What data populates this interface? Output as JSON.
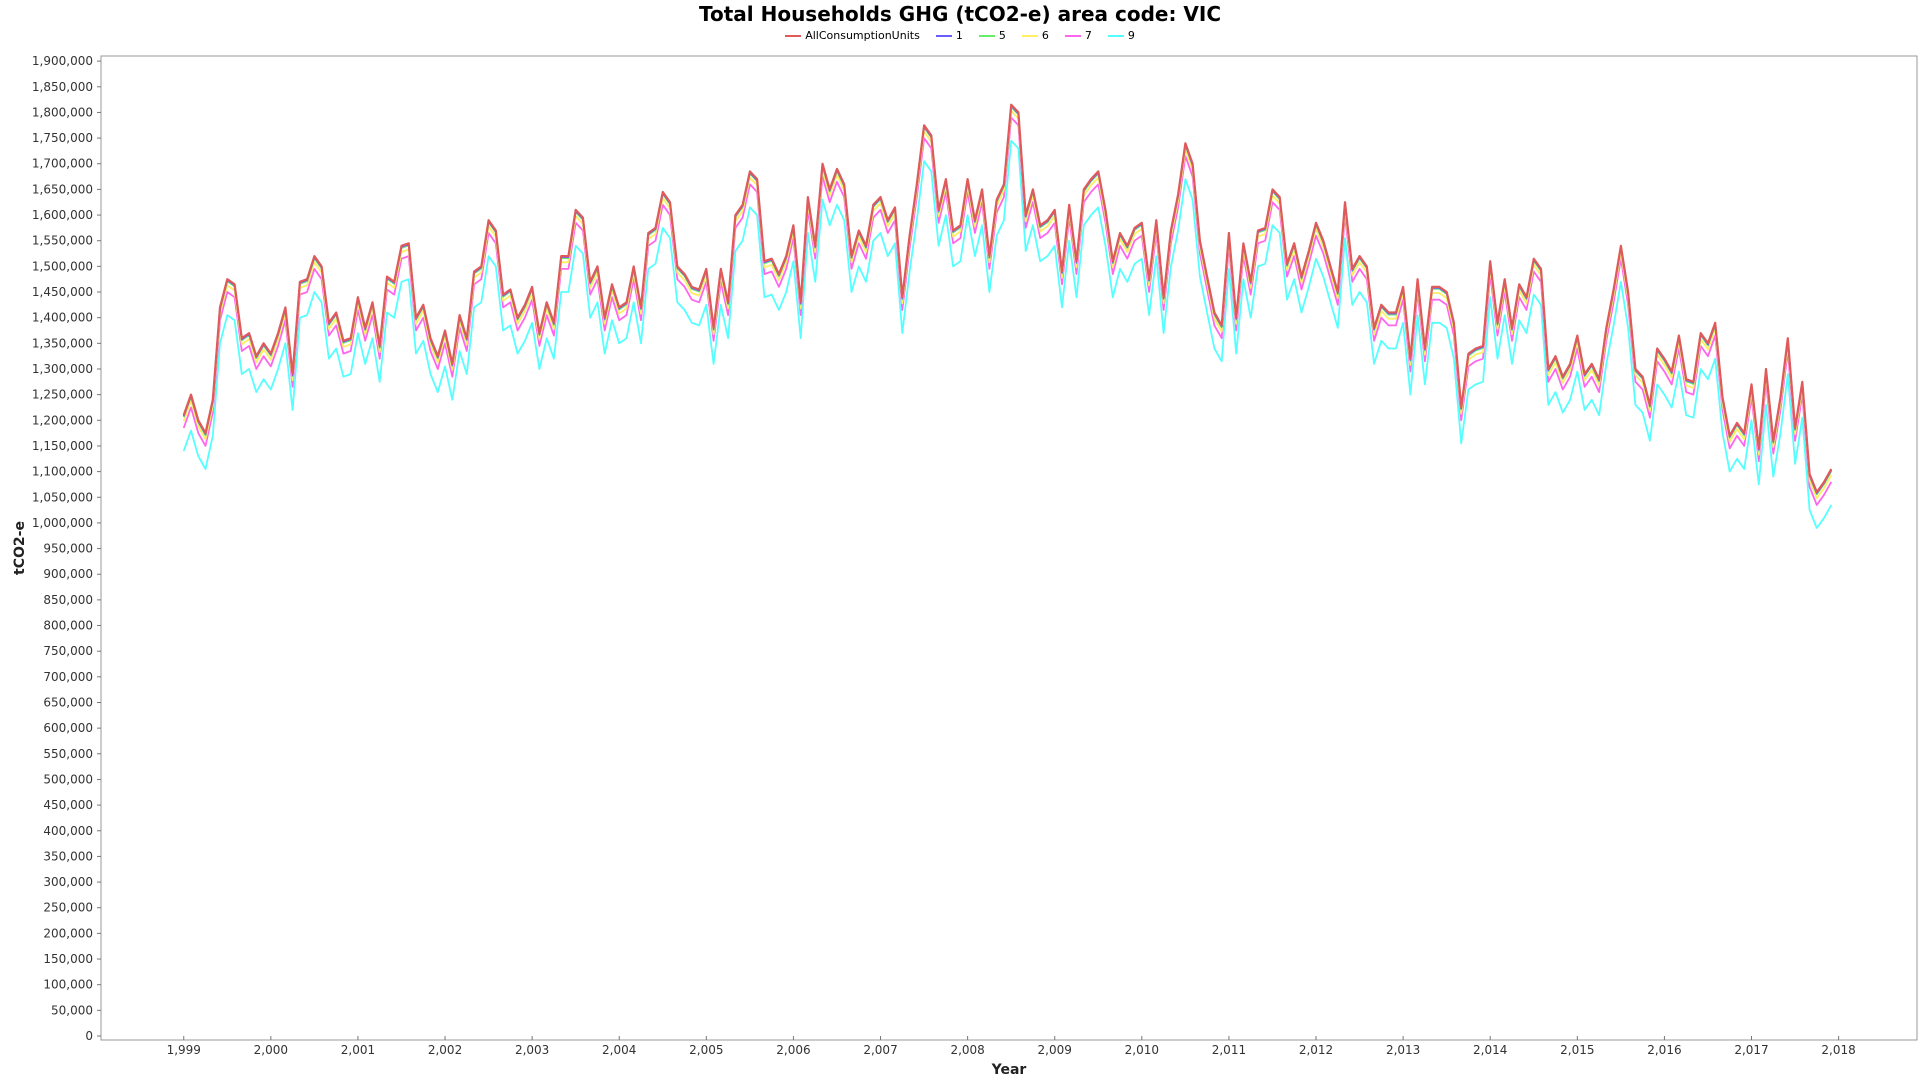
{
  "chart_data": {
    "type": "line",
    "title": "Total Households GHG (tCO2-e) area code: VIC",
    "xlabel": "Year",
    "ylabel": "tCO2-e",
    "xlim": [
      1998.05,
      2018.9
    ],
    "ylim": [
      0,
      1910000
    ],
    "x_ticks": [
      1999,
      2000,
      2001,
      2002,
      2003,
      2004,
      2005,
      2006,
      2007,
      2008,
      2009,
      2010,
      2011,
      2012,
      2013,
      2014,
      2015,
      2016,
      2017,
      2018
    ],
    "x_tick_labels": [
      "1,999",
      "2,000",
      "2,001",
      "2,002",
      "2,003",
      "2,004",
      "2,005",
      "2,006",
      "2,007",
      "2,008",
      "2,009",
      "2,010",
      "2,011",
      "2,012",
      "2,013",
      "2,014",
      "2,015",
      "2,016",
      "2,017",
      "2,018"
    ],
    "y_tick_step": 50000,
    "y_tick_max": 1900000,
    "legend_position": "top-center",
    "grid": false,
    "x_start": 1999,
    "x_step": 0.083333,
    "series": [
      {
        "name": "AllConsumptionUnits",
        "color": "#e05a5a",
        "offset": 0
      },
      {
        "name": "1",
        "color": "#6a5cff",
        "offset": -2000
      },
      {
        "name": "5",
        "color": "#66ee66",
        "offset": -4000
      },
      {
        "name": "6",
        "color": "#ffee66",
        "offset": -12000
      },
      {
        "name": "7",
        "color": "#ff66ee",
        "offset": -25000
      },
      {
        "name": "9",
        "color": "#55ffff",
        "offset": -70000
      }
    ],
    "base_values": [
      1210000,
      1250000,
      1200000,
      1175000,
      1240000,
      1420000,
      1475000,
      1465000,
      1360000,
      1370000,
      1325000,
      1350000,
      1330000,
      1370000,
      1420000,
      1290000,
      1470000,
      1475000,
      1520000,
      1500000,
      1390000,
      1410000,
      1355000,
      1360000,
      1440000,
      1380000,
      1430000,
      1345000,
      1480000,
      1470000,
      1540000,
      1545000,
      1400000,
      1425000,
      1360000,
      1325000,
      1375000,
      1310000,
      1405000,
      1360000,
      1490000,
      1500000,
      1590000,
      1570000,
      1445000,
      1455000,
      1400000,
      1425000,
      1460000,
      1370000,
      1430000,
      1390000,
      1520000,
      1520000,
      1610000,
      1595000,
      1470000,
      1500000,
      1400000,
      1465000,
      1420000,
      1430000,
      1500000,
      1420000,
      1565000,
      1575000,
      1645000,
      1625000,
      1500000,
      1485000,
      1460000,
      1455000,
      1495000,
      1380000,
      1495000,
      1430000,
      1600000,
      1620000,
      1685000,
      1670000,
      1510000,
      1515000,
      1485000,
      1520000,
      1580000,
      1430000,
      1635000,
      1540000,
      1700000,
      1650000,
      1690000,
      1660000,
      1520000,
      1570000,
      1540000,
      1620000,
      1635000,
      1590000,
      1615000,
      1440000,
      1560000,
      1660000,
      1775000,
      1755000,
      1610000,
      1670000,
      1570000,
      1580000,
      1670000,
      1590000,
      1650000,
      1520000,
      1630000,
      1660000,
      1815000,
      1800000,
      1600000,
      1650000,
      1580000,
      1590000,
      1610000,
      1490000,
      1620000,
      1510000,
      1650000,
      1670000,
      1685000,
      1610000,
      1510000,
      1565000,
      1540000,
      1575000,
      1585000,
      1475000,
      1590000,
      1440000,
      1570000,
      1640000,
      1740000,
      1700000,
      1550000,
      1480000,
      1410000,
      1385000,
      1565000,
      1400000,
      1545000,
      1470000,
      1570000,
      1575000,
      1650000,
      1635000,
      1505000,
      1545000,
      1480000,
      1530000,
      1585000,
      1550000,
      1500000,
      1450000,
      1625000,
      1495000,
      1520000,
      1500000,
      1380000,
      1425000,
      1410000,
      1410000,
      1460000,
      1320000,
      1475000,
      1340000,
      1460000,
      1460000,
      1450000,
      1390000,
      1225000,
      1330000,
      1340000,
      1345000,
      1510000,
      1390000,
      1475000,
      1380000,
      1465000,
      1440000,
      1515000,
      1495000,
      1300000,
      1325000,
      1285000,
      1310000,
      1365000,
      1290000,
      1310000,
      1280000,
      1380000,
      1455000,
      1540000,
      1450000,
      1300000,
      1285000,
      1230000,
      1340000,
      1320000,
      1295000,
      1365000,
      1280000,
      1275000,
      1370000,
      1350000,
      1390000,
      1245000,
      1170000,
      1195000,
      1175000,
      1270000,
      1145000,
      1300000,
      1160000,
      1245000,
      1360000,
      1185000,
      1275000,
      1095000,
      1060000,
      1080000,
      1105000
    ]
  }
}
